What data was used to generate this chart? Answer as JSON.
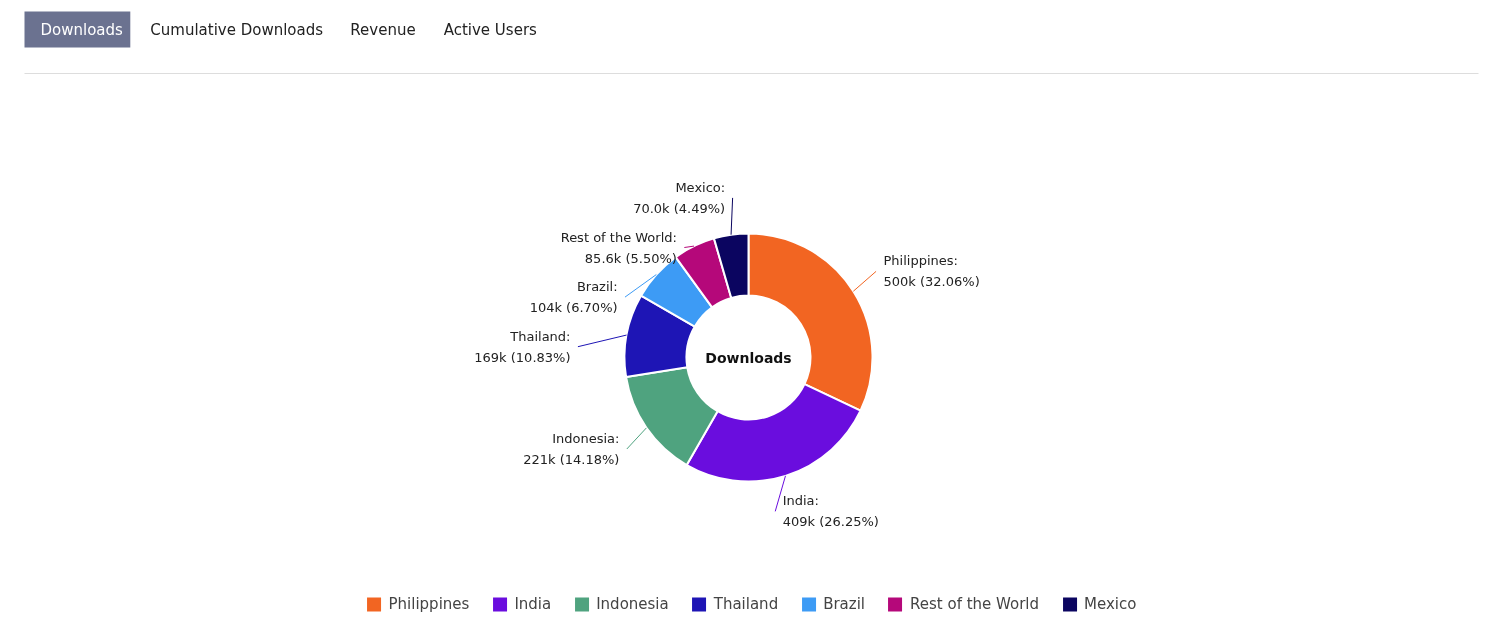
{
  "chart_data": {
    "type": "donut",
    "title": "Downloads",
    "annotations": [
      "Downloads",
      "Cumulative Downloads",
      "Revenue",
      "Active Users"
    ],
    "categories": [
      "Philippines",
      "India",
      "Indonesia",
      "Thailand",
      "Brazil",
      "Rest of the World",
      "Mexico"
    ],
    "values": [
      32.06,
      26.25,
      14.18,
      10.83,
      6.7,
      5.5,
      4.49
    ],
    "value_labels": [
      "Philippines:\n500k (32.06%)",
      "India:\n409k (26.25%)",
      "Indonesia:\n221k (14.18%)",
      "Thailand:\n169k (10.83%)",
      "Brazil:\n104k (6.70%)",
      "Rest of the World:\n85.6k (5.50%)",
      "Mexico:\n70.0k (4.49%)"
    ],
    "colors": [
      "#f26522",
      "#6a0dde",
      "#4fa37f",
      "#1e15b5",
      "#3d9bf5",
      "#b5087a",
      "#0b0560"
    ],
    "legend": "bottom"
  }
}
